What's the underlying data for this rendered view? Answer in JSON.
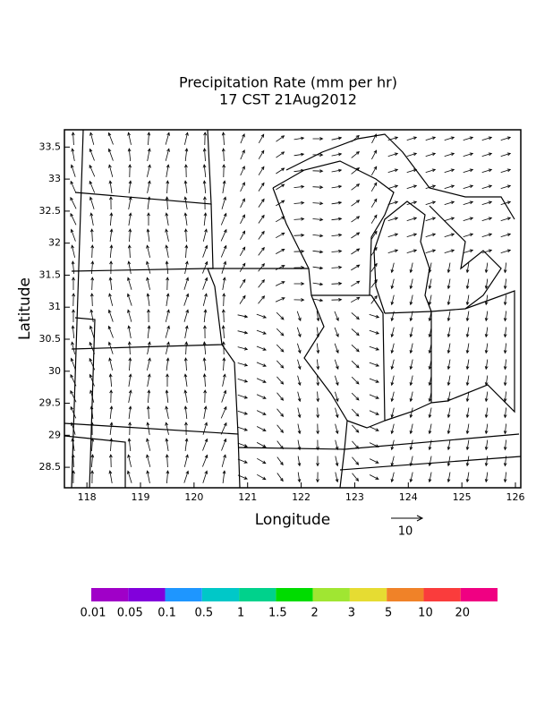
{
  "chart_data": {
    "type": "vector-map",
    "title": "Precipitation Rate (mm per hr)",
    "subtitle": "17 CST 21Aug2012",
    "x_label": "Longitude",
    "y_label": "Latitude",
    "xlim": [
      117.58,
      126.1
    ],
    "ylim": [
      28.18,
      33.77
    ],
    "xticks": [
      118,
      119,
      120,
      121,
      122,
      123,
      124,
      125,
      126
    ],
    "yticks": [
      28.5,
      29,
      29.5,
      30,
      30.5,
      31,
      31.5,
      32,
      32.5,
      33,
      33.5
    ],
    "reference_vector": {
      "value": 10
    },
    "colorbar": {
      "labels": [
        "0.01",
        "0.05",
        "0.1",
        "0.5",
        "1",
        "1.5",
        "2",
        "3",
        "5",
        "10",
        "20"
      ],
      "colors": [
        "#a000c8",
        "#8200dc",
        "#1e96ff",
        "#00c8c8",
        "#00d28c",
        "#00dc00",
        "#a0e632",
        "#e6dc32",
        "#f08228",
        "#fa3c3c",
        "#f00082"
      ]
    }
  }
}
